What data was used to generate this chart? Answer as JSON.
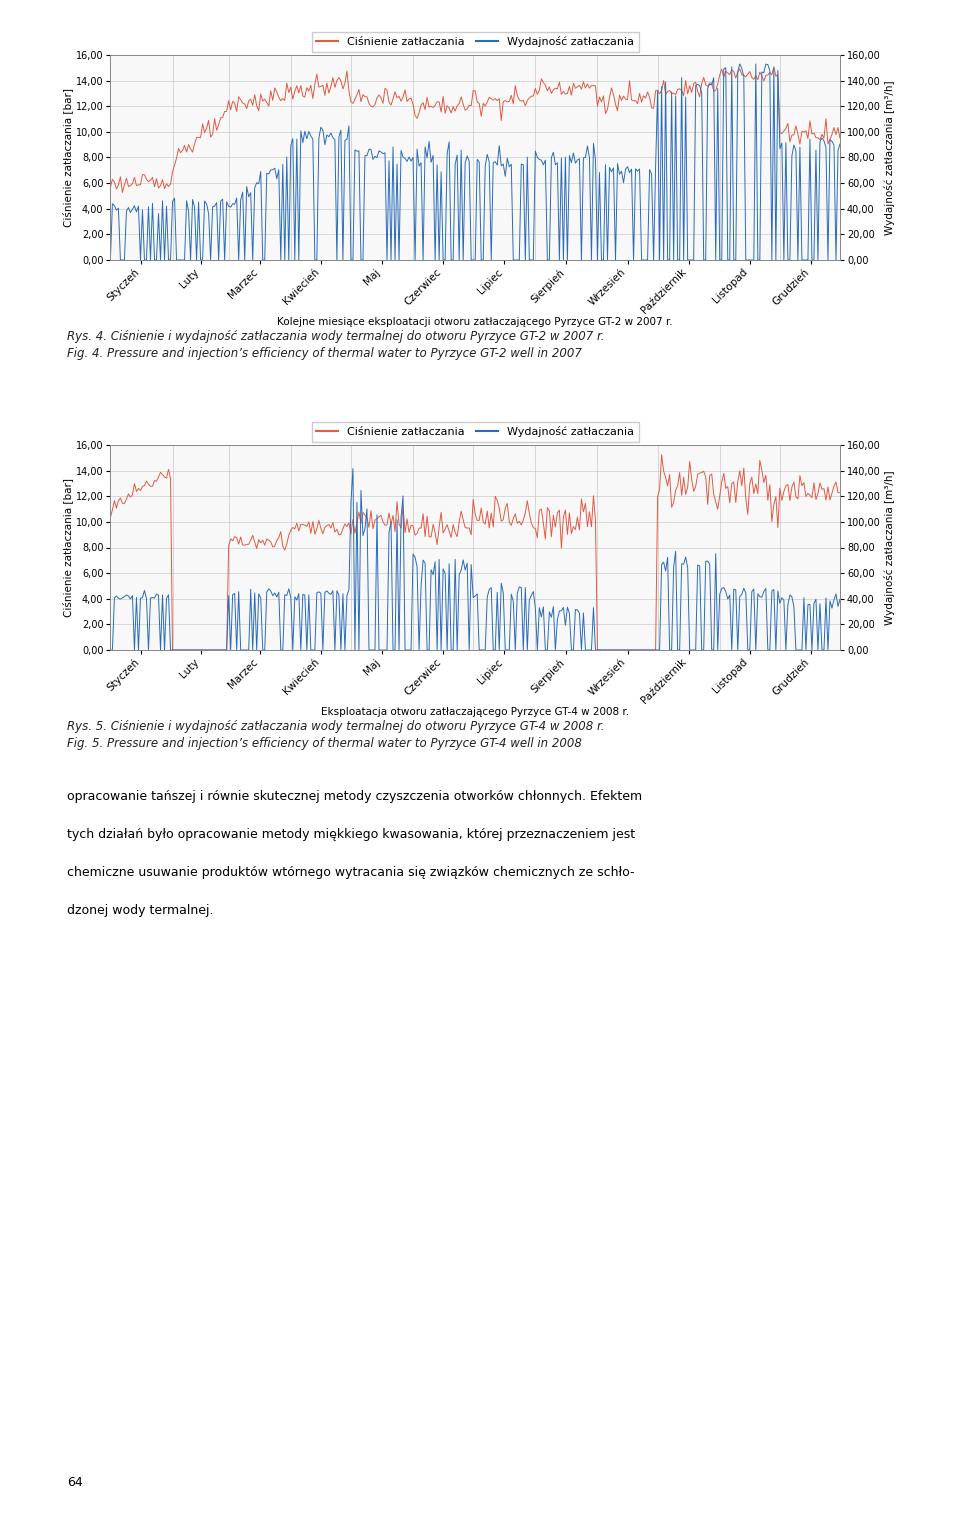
{
  "title1_rys": "Rys. 4. Ciśnienie i wydajność zatłaczania wody termalnej do otworu Pyrzyce GT-2 w 2007 r.",
  "title1_fig": "Fig. 4. Pressure and injection’s efficiency of thermal water to Pyrzyce GT-2 well in 2007",
  "title2_rys": "Rys. 5. Ciśnienie i wydajność zatłaczania wody termalnej do otworu Pyrzyce GT-4 w 2008 r.",
  "title2_fig": "Fig. 5. Pressure and injection’s efficiency of thermal water to Pyrzyce GT-4 well in 2008",
  "xlabel1": "Kolejne miesiące eksploatacji otworu zatłaczającego Pyrzyce GT-2 w 2007 r.",
  "xlabel2": "Eksploatacja otworu zatłaczającego Pyrzyce GT-4 w 2008 r.",
  "ylabel_left": "Ciśnienie zatłaczania [bar]",
  "ylabel_right": "Wydajność zatłaczania [m³/h]",
  "legend_pressure": "Ciśnienie zatłaczania",
  "legend_flow": "Wydajność zatłaczania",
  "months": [
    "Styczeń",
    "Luty",
    "Marzec",
    "Kwiecień",
    "Maj",
    "Czerwiec",
    "Lipiec",
    "Sierpień",
    "Wrzesień",
    "Październik",
    "Listopad",
    "Grudzień"
  ],
  "yticks_left": [
    0.0,
    2.0,
    4.0,
    6.0,
    8.0,
    10.0,
    12.0,
    14.0,
    16.0
  ],
  "yticks_right": [
    0.0,
    20.0,
    40.0,
    60.0,
    80.0,
    100.0,
    120.0,
    140.0,
    160.0
  ],
  "color_pressure": "#e05a44",
  "color_flow": "#2b6cb8",
  "footer_text": "opracowanie tańszej i równie skutecznej metody czyszczenia otworków chłonnych. Efektem\ntych działań było opracowanie metody miękkiego kwasowania, której przeznaczeniem jest\nchemiczne usuwanie produktów wtórnego wytracania się związków chemicznych ze schło-\ndzonej wody termalnej.",
  "page_number": "64"
}
